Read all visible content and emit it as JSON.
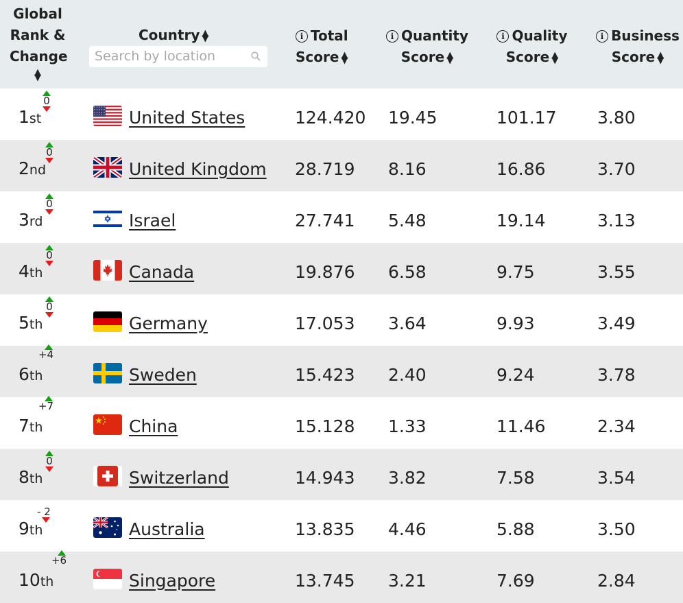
{
  "header": {
    "rank": [
      "Global",
      "Rank &",
      "Change"
    ],
    "country": "Country",
    "search_placeholder": "Search by location",
    "total": [
      "Total",
      "Score"
    ],
    "quantity": [
      "Quantity",
      "Score"
    ],
    "quality": [
      "Quality",
      "Score"
    ],
    "business": [
      "Business",
      "Score"
    ],
    "sort_glyph_up": "▲",
    "sort_glyph_down": "▼",
    "info_glyph": "i"
  },
  "colors": {
    "up": "#14a014",
    "down": "#e31c1c",
    "header_bg": "#e7ecee",
    "alt_row_bg": "#e9e9e9"
  },
  "rows": [
    {
      "rank": "1",
      "suffix": "st",
      "change": "0",
      "change_icons": "up-down",
      "flag": "flag-united-states-icon",
      "country": "United States",
      "total": "124.420",
      "quantity": "19.45",
      "quality": "101.17",
      "business": "3.80"
    },
    {
      "rank": "2",
      "suffix": "nd",
      "change": "0",
      "change_icons": "up-down",
      "flag": "flag-united-kingdom-icon",
      "country": "United Kingdom",
      "total": "28.719",
      "quantity": "8.16",
      "quality": "16.86",
      "business": "3.70"
    },
    {
      "rank": "3",
      "suffix": "rd",
      "change": "0",
      "change_icons": "up-down",
      "flag": "flag-israel-icon",
      "country": "Israel",
      "total": "27.741",
      "quantity": "5.48",
      "quality": "19.14",
      "business": "3.13"
    },
    {
      "rank": "4",
      "suffix": "th",
      "change": "0",
      "change_icons": "up-down",
      "flag": "flag-canada-icon",
      "country": "Canada",
      "total": "19.876",
      "quantity": "6.58",
      "quality": "9.75",
      "business": "3.55"
    },
    {
      "rank": "5",
      "suffix": "th",
      "change": "0",
      "change_icons": "up-down",
      "flag": "flag-germany-icon",
      "country": "Germany",
      "total": "17.053",
      "quantity": "3.64",
      "quality": "9.93",
      "business": "3.49"
    },
    {
      "rank": "6",
      "suffix": "th",
      "change": "+4",
      "change_icons": "up",
      "flag": "flag-sweden-icon",
      "country": "Sweden",
      "total": "15.423",
      "quantity": "2.40",
      "quality": "9.24",
      "business": "3.78"
    },
    {
      "rank": "7",
      "suffix": "th",
      "change": "+7",
      "change_icons": "up",
      "flag": "flag-china-icon",
      "country": "China",
      "total": "15.128",
      "quantity": "1.33",
      "quality": "11.46",
      "business": "2.34"
    },
    {
      "rank": "8",
      "suffix": "th",
      "change": "0",
      "change_icons": "up-down",
      "flag": "flag-switzerland-icon",
      "country": "Switzerland",
      "total": "14.943",
      "quantity": "3.82",
      "quality": "7.58",
      "business": "3.54"
    },
    {
      "rank": "9",
      "suffix": "th",
      "change": "- 2",
      "change_icons": "down",
      "flag": "flag-australia-icon",
      "country": "Australia",
      "total": "13.835",
      "quantity": "4.46",
      "quality": "5.88",
      "business": "3.50"
    },
    {
      "rank": "10",
      "suffix": "th",
      "change": "+6",
      "change_icons": "up",
      "flag": "flag-singapore-icon",
      "country": "Singapore",
      "total": "13.745",
      "quantity": "3.21",
      "quality": "7.69",
      "business": "2.84"
    }
  ]
}
